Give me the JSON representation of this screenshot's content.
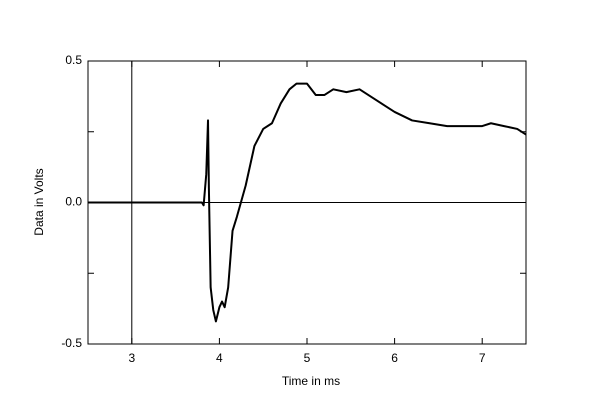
{
  "chart_data": {
    "type": "line",
    "xlabel": "Time in ms",
    "ylabel": "Data in Volts",
    "xlim": [
      2.5,
      7.5
    ],
    "ylim": [
      -0.5,
      0.5
    ],
    "xticks": [
      3,
      4,
      5,
      6,
      7
    ],
    "yticks": [
      -0.5,
      {
        "value": 0,
        "label": "0.0"
      },
      0.5
    ],
    "yminor": [
      -0.25,
      0.25
    ],
    "reference_lines": {
      "x": 3,
      "y": 0
    },
    "series": [
      {
        "color": "#000000",
        "x": [
          2.5,
          3.8,
          3.82,
          3.85,
          3.87,
          3.88,
          3.9,
          3.93,
          3.96,
          4.0,
          4.03,
          4.06,
          4.1,
          4.15,
          4.2,
          4.3,
          4.4,
          4.5,
          4.6,
          4.7,
          4.8,
          4.88,
          5.0,
          5.1,
          5.2,
          5.3,
          5.45,
          5.6,
          5.75,
          5.9,
          6.0,
          6.2,
          6.4,
          6.6,
          6.8,
          7.0,
          7.1,
          7.25,
          7.4,
          7.5
        ],
        "values": [
          0,
          0,
          -0.01,
          0.1,
          0.29,
          0.05,
          -0.3,
          -0.38,
          -0.42,
          -0.37,
          -0.35,
          -0.37,
          -0.3,
          -0.1,
          -0.05,
          0.06,
          0.2,
          0.26,
          0.28,
          0.35,
          0.4,
          0.42,
          0.42,
          0.38,
          0.38,
          0.4,
          0.39,
          0.4,
          0.37,
          0.34,
          0.32,
          0.29,
          0.28,
          0.27,
          0.27,
          0.27,
          0.28,
          0.27,
          0.26,
          0.24
        ]
      }
    ]
  }
}
